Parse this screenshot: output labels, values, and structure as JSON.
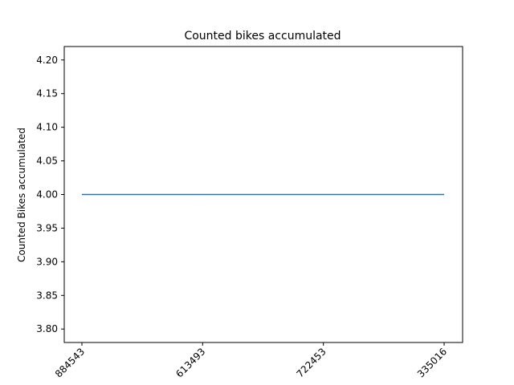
{
  "chart_data": {
    "type": "line",
    "title": "Counted bikes accumulated",
    "xlabel": "",
    "ylabel": "Counted Bikes accumulated",
    "categories": [
      "884543",
      "613493",
      "722453",
      "335016"
    ],
    "series": [
      {
        "name": "Counted Bikes accumulated",
        "values": [
          4,
          4,
          4,
          4
        ],
        "color": "#1f77b4"
      }
    ],
    "ylim": [
      3.78,
      4.22
    ],
    "yticks": [
      3.8,
      3.85,
      3.9,
      3.95,
      4.0,
      4.05,
      4.1,
      4.15,
      4.2
    ],
    "ytick_labels": [
      "3.80",
      "3.85",
      "3.90",
      "3.95",
      "4.00",
      "4.05",
      "4.10",
      "4.15",
      "4.20"
    ],
    "grid": false,
    "legend": "none"
  }
}
